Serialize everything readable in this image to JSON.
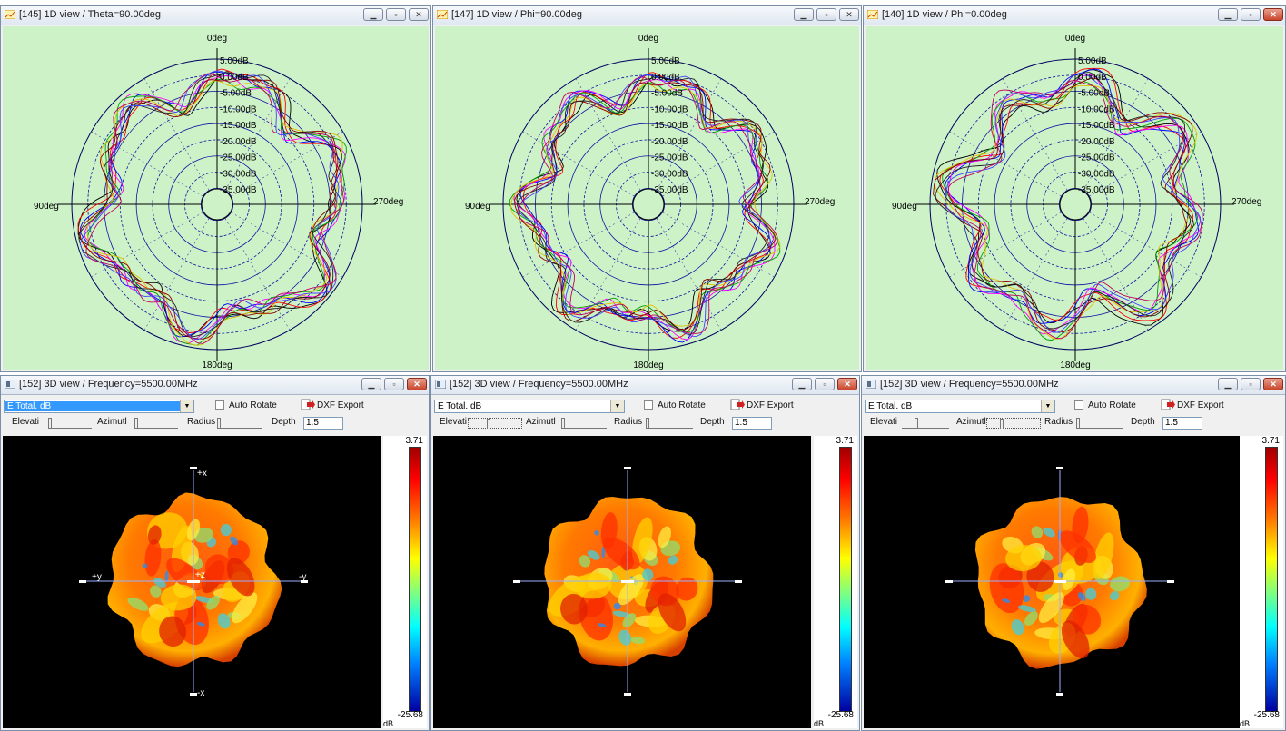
{
  "polar_windows": [
    {
      "title": "[145] 1D view / Theta=90.00deg",
      "top_label": "0deg",
      "left_label": "90deg",
      "right_label": "270deg",
      "bottom_label": "180deg"
    },
    {
      "title": "[147] 1D view / Phi=90.00deg",
      "top_label": "0deg",
      "left_label": "90deg",
      "right_label": "270deg",
      "bottom_label": "180deg"
    },
    {
      "title": "[140] 1D view / Phi=0.00deg",
      "top_label": "0deg",
      "left_label": "90deg",
      "right_label": "270deg",
      "bottom_label": "180deg"
    }
  ],
  "ring_labels": [
    "5.00dB",
    "0.00dB",
    "-5.00dB",
    "-10.00dB",
    "-15.00dB",
    "-20.00dB",
    "-25.00dB",
    "-30.00dB",
    "-35.00dB"
  ],
  "view3d_windows": [
    {
      "title": "[152] 3D view / Frequency=5500.00MHz",
      "axes": {
        "top": "+x",
        "bottom": "-x",
        "left": "+y",
        "right": "-y",
        "center": "+z"
      }
    },
    {
      "title": "[152] 3D view / Frequency=5500.00MHz",
      "axes": {
        "top": "",
        "bottom": "",
        "left": "",
        "right": "",
        "center": ""
      }
    },
    {
      "title": "[152] 3D view / Frequency=5500.00MHz",
      "axes": {
        "top": "",
        "bottom": "",
        "left": "",
        "right": "",
        "center": ""
      }
    }
  ],
  "controls": {
    "select_value": "E Total. dB",
    "auto_rotate": "Auto Rotate",
    "dxf_export": "DXF Export",
    "elevation": "Elevati",
    "azimuth": "Azimutl",
    "radius": "Radius",
    "depth": "Depth",
    "depth_value": "1.5"
  },
  "colorbar": {
    "max": "3.71",
    "min": "-25.68",
    "unit": "dB"
  },
  "colors": {
    "plot_bg": "#cdf2c8",
    "view_bg": "#000000",
    "window_border": "#7a8ea8"
  }
}
